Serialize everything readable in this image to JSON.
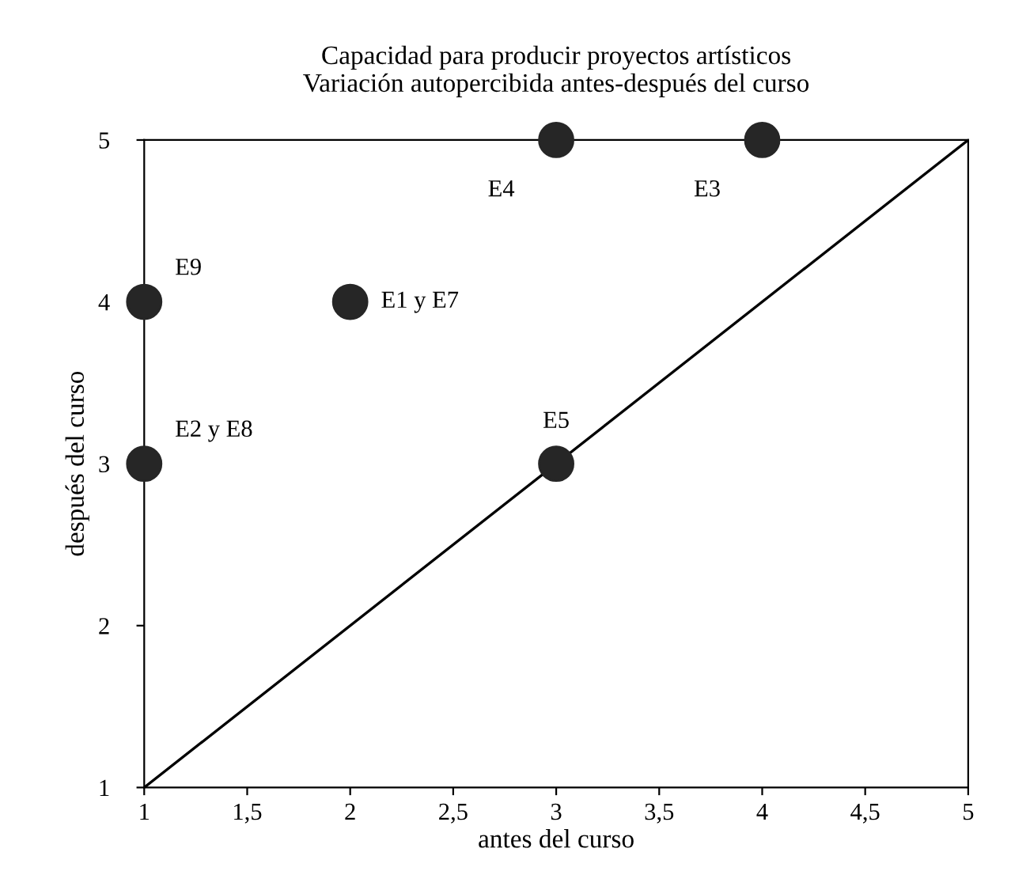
{
  "chart_data": {
    "type": "scatter",
    "title": "Capacidad para producir proyectos artísticos\nVariación autopercibida antes-después del curso",
    "xlabel": "antes del curso",
    "ylabel": "después del curso",
    "series": [
      {
        "color": "#262626",
        "x": [
          1,
          2,
          1,
          3,
          3,
          4
        ],
        "values": [
          4,
          4,
          3,
          3,
          5,
          5
        ],
        "marker": "circle"
      },
      {
        "type": "line",
        "color": "#000000",
        "x": [
          1,
          5
        ],
        "values": [
          1,
          5
        ],
        "line_style": "solid"
      }
    ],
    "annotations": [
      {
        "text": "E9",
        "x": 1,
        "y": 4
      },
      {
        "text": "E1 y E7",
        "x": 2,
        "y": 4
      },
      {
        "text": "E2 y E8",
        "x": 1,
        "y": 3
      },
      {
        "text": "E5",
        "x": 3,
        "y": 3
      },
      {
        "text": "E4",
        "x": 3,
        "y": 5
      },
      {
        "text": "E3",
        "x": 4,
        "y": 5
      }
    ],
    "xlim": [
      1,
      5
    ],
    "ylim": [
      1,
      5
    ],
    "xticks": [
      1,
      {
        "value": 1.5,
        "label": "1,5"
      },
      2,
      {
        "value": 2.5,
        "label": "2,5"
      },
      3,
      {
        "value": 3.5,
        "label": "3,5"
      },
      4,
      {
        "value": 4.5,
        "label": "4,5"
      },
      5
    ],
    "yticks": [
      1,
      2,
      3,
      4,
      5
    ],
    "grid": false,
    "legend": false
  }
}
